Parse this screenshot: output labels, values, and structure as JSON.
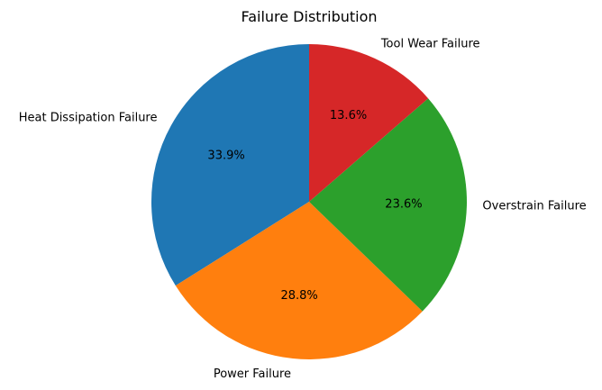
{
  "chart_data": {
    "type": "pie",
    "title": "Failure Distribution",
    "start_angle_deg": 90,
    "direction": "counterclockwise",
    "slices": [
      {
        "label": "Heat Dissipation Failure",
        "value": 33.9,
        "pct_label": "33.9%",
        "color": "#1f77b4"
      },
      {
        "label": "Power Failure",
        "value": 28.8,
        "pct_label": "28.8%",
        "color": "#ff7f0e"
      },
      {
        "label": "Overstrain Failure",
        "value": 23.6,
        "pct_label": "23.6%",
        "color": "#2ca02c"
      },
      {
        "label": "Tool Wear Failure",
        "value": 13.6,
        "pct_label": "13.6%",
        "color": "#d62728"
      }
    ]
  }
}
